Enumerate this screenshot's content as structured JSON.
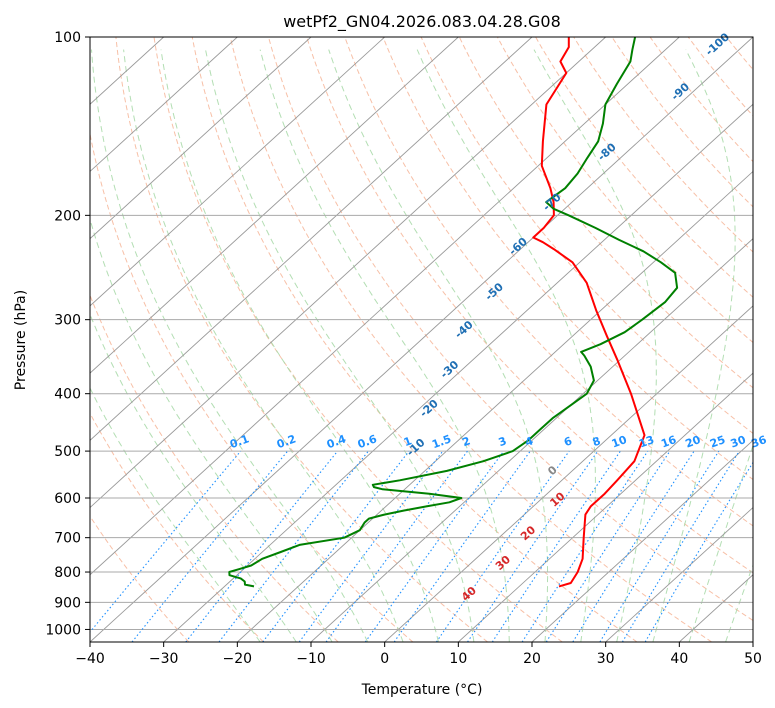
{
  "chart_data": {
    "type": "skew-t",
    "title": "wetPf2_GN04.2026.083.04.28.G08",
    "xlabel": "Temperature (°C)",
    "ylabel": "Pressure (hPa)",
    "xlim": [
      -40,
      50
    ],
    "ylim": [
      1050,
      100
    ],
    "y_scale": "log",
    "grid": true,
    "x_ticks": [
      "−40",
      "−30",
      "−20",
      "−10",
      "0",
      "10",
      "20",
      "30",
      "40",
      "50"
    ],
    "y_ticks": [
      "100",
      "200",
      "300",
      "400",
      "500",
      "600",
      "700",
      "800",
      "900",
      "1000"
    ],
    "colors": {
      "temperature": "#ff0000",
      "dewpoint": "#008000",
      "isotherm": "#999999",
      "dry_adiabat": "#f4a582",
      "moist_adiabat": "#a6d8a6",
      "mixing_ratio": "#1e90ff",
      "height_label": "#1f6fb4",
      "ccl_label": "#d62728"
    },
    "series": [
      {
        "key": "temperature",
        "pressure": [
          846,
          835,
          800,
          760,
          700,
          640,
          620,
          590,
          560,
          520,
          470,
          400,
          350,
          320,
          290,
          260,
          240,
          228,
          222,
          218,
          210,
          200,
          190,
          180,
          165,
          150,
          130,
          115,
          110,
          104,
          100
        ],
        "temperature": [
          15.4,
          16.5,
          15.8,
          14.5,
          11.5,
          8.3,
          7.8,
          7.8,
          7.5,
          7.0,
          4.5,
          -3.5,
          -10.5,
          -15.3,
          -20.5,
          -26.0,
          -31.0,
          -35.5,
          -38.0,
          -40.0,
          -40.0,
          -40.5,
          -42.5,
          -45.0,
          -49.5,
          -53.0,
          -58.0,
          -60.0,
          -62.5,
          -63.5,
          -65.0
        ]
      },
      {
        "key": "dewpoint",
        "pressure": [
          846,
          840,
          830,
          820,
          810,
          800,
          790,
          780,
          760,
          740,
          720,
          700,
          680,
          660,
          650,
          640,
          630,
          620,
          610,
          600,
          590,
          580,
          575,
          570,
          560,
          540,
          520,
          500,
          480,
          460,
          440,
          420,
          400,
          380,
          360,
          345,
          340,
          330,
          315,
          300,
          280,
          265,
          250,
          240,
          230,
          220,
          210,
          200,
          195,
          190,
          180,
          170,
          160,
          150,
          140,
          130,
          120,
          110,
          105,
          100
        ],
        "dewpoint": [
          -26.0,
          -27.5,
          -28.0,
          -29.0,
          -31.0,
          -31.5,
          -30.5,
          -29.5,
          -29.0,
          -27.5,
          -26.0,
          -21.0,
          -20.0,
          -20.5,
          -20.5,
          -19.0,
          -17.0,
          -14.5,
          -12.0,
          -11.0,
          -16.0,
          -23.0,
          -24.5,
          -25.0,
          -22.0,
          -17.0,
          -13.5,
          -11.0,
          -10.5,
          -10.5,
          -10.5,
          -10.0,
          -9.5,
          -10.5,
          -13.0,
          -15.5,
          -16.5,
          -15.0,
          -13.5,
          -13.0,
          -12.5,
          -13.0,
          -15.5,
          -19.0,
          -23.0,
          -28.0,
          -33.0,
          -38.5,
          -41.5,
          -43.5,
          -43.0,
          -43.5,
          -44.5,
          -45.5,
          -47.5,
          -50.0,
          -51.5,
          -53.0,
          -54.5,
          -56.0
        ]
      }
    ],
    "mixing_ratio_labels": [
      "0.1",
      "0.2",
      "0.4",
      "0.6",
      "1",
      "1.5",
      "2",
      "3",
      "4",
      "6",
      "8",
      "10",
      "13",
      "16",
      "20",
      "25",
      "30",
      "36"
    ],
    "height_labels": [
      {
        "text": "-100",
        "pressure": 104,
        "temperature": -43
      },
      {
        "text": "-90",
        "pressure": 125,
        "temperature": -41
      },
      {
        "text": "-80",
        "pressure": 158,
        "temperature": -42
      },
      {
        "text": "-70",
        "pressure": 192,
        "temperature": -42
      },
      {
        "text": "-60",
        "pressure": 228,
        "temperature": -40
      },
      {
        "text": "-50",
        "pressure": 272,
        "temperature": -36.5
      },
      {
        "text": "-40",
        "pressure": 315,
        "temperature": -35
      },
      {
        "text": "-30",
        "pressure": 368,
        "temperature": -31
      },
      {
        "text": "-20",
        "pressure": 428,
        "temperature": -28
      },
      {
        "text": "-10",
        "pressure": 498,
        "temperature": -24
      }
    ],
    "annotations": [
      {
        "text": "0",
        "pressure": 545,
        "temperature": -2,
        "color": "#888888"
      },
      {
        "text": "10",
        "pressure": 610,
        "temperature": 3,
        "color": "#d62728"
      },
      {
        "text": "20",
        "pressure": 695,
        "temperature": 4,
        "color": "#d62728"
      },
      {
        "text": "30",
        "pressure": 780,
        "temperature": 5,
        "color": "#d62728"
      },
      {
        "text": "40",
        "pressure": 880,
        "temperature": 5,
        "color": "#d62728"
      }
    ]
  }
}
